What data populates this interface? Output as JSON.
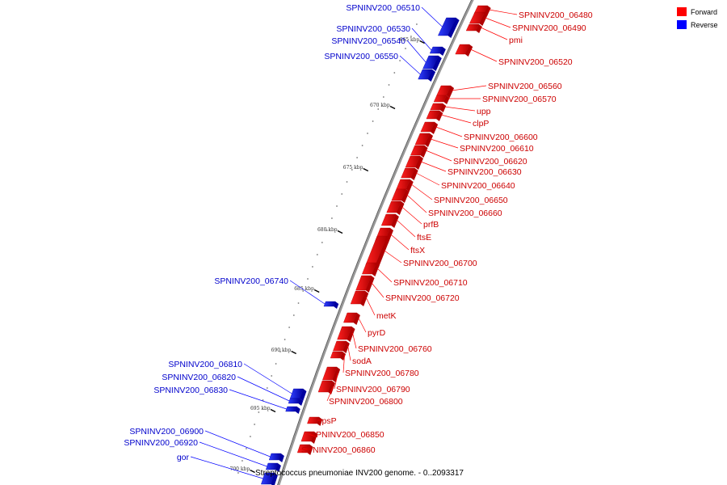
{
  "caption": "Streptococcus pneumoniae INV200 genome. - 0..2093317",
  "legend": [
    {
      "label": "Forward",
      "color": "#ff0000"
    },
    {
      "label": "Reverse",
      "color": "#0000ff"
    }
  ],
  "colors": {
    "forward": "#ff0000",
    "forward_dark": "#b00000",
    "reverse": "#0000ff",
    "reverse_dark": "#0000a0",
    "backbone": "#888888"
  },
  "ticks": [
    "665 kbp",
    "670 kbp",
    "675 kbp",
    "680 kbp",
    "685 kbp",
    "690 kbp",
    "695 kbp",
    "700 kbp"
  ],
  "forward_labels": [
    "SPNINV200_06480",
    "SPNINV200_06490",
    "pmi",
    "SPNINV200_06520",
    "SPNINV200_06560",
    "SPNINV200_06570",
    "upp",
    "clpP",
    "SPNINV200_06600",
    "SPNINV200_06610",
    "SPNINV200_06620",
    "SPNINV200_06630",
    "SPNINV200_06640",
    "SPNINV200_06650",
    "SPNINV200_06660",
    "prfB",
    "ftsE",
    "ftsX",
    "SPNINV200_06700",
    "SPNINV200_06710",
    "SPNINV200_06720",
    "metK",
    "pyrD",
    "SPNINV200_06760",
    "sodA",
    "SPNINV200_06780",
    "SPNINV200_06790",
    "SPNINV200_06800",
    "rpsP",
    "SPNINV200_06850",
    "SPNINV200_06860"
  ],
  "reverse_labels": [
    "SPNINV200_06510",
    "SPNINV200_06530",
    "SPNINV200_06540",
    "SPNINV200_06550",
    "SPNINV200_06740",
    "SPNINV200_06810",
    "SPNINV200_06820",
    "SPNINV200_06830",
    "SPNINV200_06900",
    "SPNINV200_06920",
    "gor"
  ]
}
